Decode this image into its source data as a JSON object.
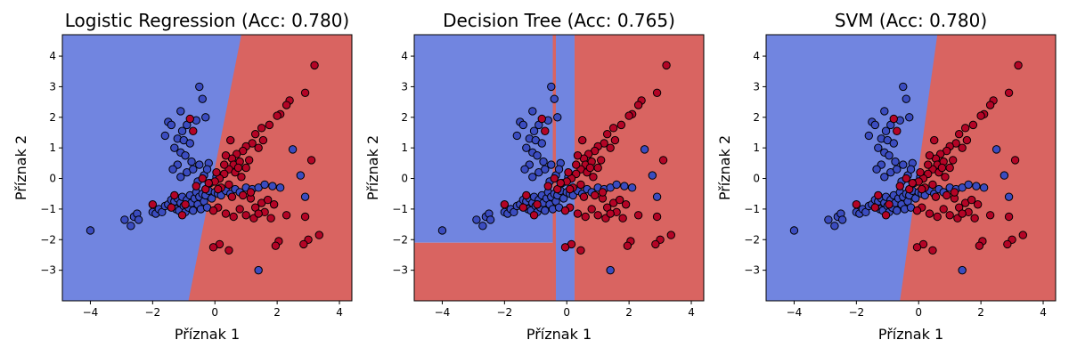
{
  "figure": {
    "class_colors": {
      "0": "#3b4cc0",
      "1": "#b40426"
    },
    "region_colors": {
      "0": "#7185e0",
      "1": "#d96461"
    }
  },
  "chart_data": [
    {
      "type": "scatter",
      "title": "Logistic Regression (Acc: 0.780)",
      "xlabel": "Příznak 1",
      "ylabel": "Příznak 2",
      "xlim": [
        -4.9,
        4.4
      ],
      "ylim": [
        -4.0,
        4.7
      ],
      "xticks": [
        -4,
        -2,
        0,
        2,
        4
      ],
      "yticks": [
        -3,
        -2,
        -1,
        0,
        1,
        2,
        3,
        4
      ],
      "grid": false,
      "decision_boundary": {
        "kind": "linear",
        "points": [
          [
            -0.85,
            -4.0
          ],
          [
            0.85,
            4.7
          ]
        ],
        "left_class": 0,
        "right_class": 1
      }
    },
    {
      "type": "scatter",
      "title": "Decision Tree (Acc: 0.765)",
      "xlabel": "Příznak 1",
      "ylabel": "Příznak 2",
      "xlim": [
        -4.9,
        4.4
      ],
      "ylim": [
        -4.0,
        4.7
      ],
      "xticks": [
        -4,
        -2,
        0,
        2,
        4
      ],
      "yticks": [
        -3,
        -2,
        -1,
        0,
        1,
        2,
        3,
        4
      ],
      "grid": false,
      "decision_regions": [
        {
          "x": [
            -4.9,
            -0.45
          ],
          "y": [
            -2.1,
            4.7
          ],
          "class": 0
        },
        {
          "x": [
            -4.9,
            -0.45
          ],
          "y": [
            -4.0,
            -2.1
          ],
          "class": 1
        },
        {
          "x": [
            -0.45,
            -0.35
          ],
          "y": [
            -4.0,
            4.7
          ],
          "class": 1
        },
        {
          "x": [
            -0.35,
            0.25
          ],
          "y": [
            -4.0,
            4.7
          ],
          "class": 0
        },
        {
          "x": [
            0.25,
            4.4
          ],
          "y": [
            -4.0,
            4.7
          ],
          "class": 1
        }
      ]
    },
    {
      "type": "scatter",
      "title": "SVM (Acc: 0.780)",
      "xlabel": "Příznak 1",
      "ylabel": "Příznak 2",
      "xlim": [
        -4.9,
        4.4
      ],
      "ylim": [
        -4.0,
        4.7
      ],
      "xticks": [
        -4,
        -2,
        0,
        2,
        4
      ],
      "yticks": [
        -3,
        -2,
        -1,
        0,
        1,
        2,
        3,
        4
      ],
      "grid": false,
      "decision_boundary": {
        "kind": "linear",
        "points": [
          [
            -0.6,
            -4.0
          ],
          [
            0.6,
            4.7
          ]
        ],
        "left_class": 0,
        "right_class": 1
      }
    }
  ],
  "points": [
    {
      "x": -4.0,
      "y": -1.7,
      "c": 0
    },
    {
      "x": -2.9,
      "y": -1.35,
      "c": 0
    },
    {
      "x": -2.7,
      "y": -1.55,
      "c": 0
    },
    {
      "x": -2.6,
      "y": -1.25,
      "c": 0
    },
    {
      "x": -2.5,
      "y": -1.15,
      "c": 0
    },
    {
      "x": -2.45,
      "y": -1.35,
      "c": 0
    },
    {
      "x": -2.0,
      "y": -1.1,
      "c": 0
    },
    {
      "x": -1.9,
      "y": -1.15,
      "c": 0
    },
    {
      "x": -1.8,
      "y": -1.0,
      "c": 0
    },
    {
      "x": -1.7,
      "y": -1.1,
      "c": 0
    },
    {
      "x": -1.6,
      "y": -0.9,
      "c": 0
    },
    {
      "x": -1.5,
      "y": -0.85,
      "c": 0
    },
    {
      "x": -1.4,
      "y": -0.7,
      "c": 0
    },
    {
      "x": -1.3,
      "y": -0.75,
      "c": 0
    },
    {
      "x": -1.25,
      "y": -1.0,
      "c": 0
    },
    {
      "x": -1.2,
      "y": -0.65,
      "c": 0
    },
    {
      "x": -1.15,
      "y": -1.05,
      "c": 0
    },
    {
      "x": -1.1,
      "y": -0.8,
      "c": 0
    },
    {
      "x": -1.05,
      "y": -0.6,
      "c": 0
    },
    {
      "x": -1.0,
      "y": -0.9,
      "c": 0
    },
    {
      "x": -0.95,
      "y": -1.1,
      "c": 0
    },
    {
      "x": -0.9,
      "y": -0.7,
      "c": 0
    },
    {
      "x": -0.85,
      "y": -0.95,
      "c": 0
    },
    {
      "x": -0.8,
      "y": -0.55,
      "c": 0
    },
    {
      "x": -0.75,
      "y": -0.8,
      "c": 0
    },
    {
      "x": -0.7,
      "y": -1.05,
      "c": 0
    },
    {
      "x": -0.65,
      "y": -0.65,
      "c": 0
    },
    {
      "x": -0.6,
      "y": -0.45,
      "c": 0
    },
    {
      "x": -0.55,
      "y": -0.85,
      "c": 0
    },
    {
      "x": -0.5,
      "y": -0.6,
      "c": 0
    },
    {
      "x": -0.45,
      "y": -1.0,
      "c": 0
    },
    {
      "x": -0.4,
      "y": -0.5,
      "c": 0
    },
    {
      "x": -0.35,
      "y": -0.75,
      "c": 0
    },
    {
      "x": -0.3,
      "y": -0.55,
      "c": 0
    },
    {
      "x": -0.25,
      "y": -0.95,
      "c": 0
    },
    {
      "x": -0.2,
      "y": -0.4,
      "c": 0
    },
    {
      "x": -0.1,
      "y": -0.65,
      "c": 0
    },
    {
      "x": 0.0,
      "y": -0.45,
      "c": 0
    },
    {
      "x": 0.1,
      "y": -0.5,
      "c": 0
    },
    {
      "x": 0.2,
      "y": -0.55,
      "c": 0
    },
    {
      "x": 0.35,
      "y": -0.4,
      "c": 0
    },
    {
      "x": 0.5,
      "y": -0.5,
      "c": 0
    },
    {
      "x": 0.65,
      "y": -0.35,
      "c": 0
    },
    {
      "x": 0.8,
      "y": -0.45,
      "c": 0
    },
    {
      "x": 1.0,
      "y": -0.3,
      "c": 0
    },
    {
      "x": 1.2,
      "y": -0.35,
      "c": 0
    },
    {
      "x": 1.4,
      "y": -0.3,
      "c": 0
    },
    {
      "x": 1.6,
      "y": -0.2,
      "c": 0
    },
    {
      "x": 1.85,
      "y": -0.25,
      "c": 0
    },
    {
      "x": 2.1,
      "y": -0.3,
      "c": 0
    },
    {
      "x": 2.75,
      "y": 0.1,
      "c": 0
    },
    {
      "x": 2.5,
      "y": 0.95,
      "c": 0
    },
    {
      "x": 2.9,
      "y": -0.6,
      "c": 0
    },
    {
      "x": 1.4,
      "y": -3.0,
      "c": 0
    },
    {
      "x": -1.5,
      "y": 1.85,
      "c": 0
    },
    {
      "x": -1.4,
      "y": 1.75,
      "c": 0
    },
    {
      "x": -1.1,
      "y": 2.2,
      "c": 0
    },
    {
      "x": -0.9,
      "y": 1.75,
      "c": 0
    },
    {
      "x": -1.05,
      "y": 1.55,
      "c": 0
    },
    {
      "x": -0.5,
      "y": 3.0,
      "c": 0
    },
    {
      "x": -0.4,
      "y": 2.6,
      "c": 0
    },
    {
      "x": -0.3,
      "y": 2.0,
      "c": 0
    },
    {
      "x": -0.6,
      "y": 1.9,
      "c": 0
    },
    {
      "x": -1.6,
      "y": 1.4,
      "c": 0
    },
    {
      "x": -1.2,
      "y": 1.3,
      "c": 0
    },
    {
      "x": -1.0,
      "y": 1.25,
      "c": 0
    },
    {
      "x": -0.8,
      "y": 1.15,
      "c": 0
    },
    {
      "x": -1.3,
      "y": 1.0,
      "c": 0
    },
    {
      "x": -1.1,
      "y": 0.85,
      "c": 0
    },
    {
      "x": -0.95,
      "y": 0.75,
      "c": 0
    },
    {
      "x": -1.2,
      "y": 0.45,
      "c": 0
    },
    {
      "x": -1.35,
      "y": 0.3,
      "c": 0
    },
    {
      "x": -0.75,
      "y": 0.55,
      "c": 0
    },
    {
      "x": -0.9,
      "y": 0.2,
      "c": 0
    },
    {
      "x": -1.1,
      "y": 0.05,
      "c": 0
    },
    {
      "x": -0.7,
      "y": 0.3,
      "c": 0
    },
    {
      "x": -0.5,
      "y": 0.45,
      "c": 0
    },
    {
      "x": -0.2,
      "y": 0.5,
      "c": 0
    },
    {
      "x": -0.35,
      "y": 0.1,
      "c": 0
    },
    {
      "x": -0.15,
      "y": -0.15,
      "c": 0
    },
    {
      "x": 0.05,
      "y": 0.05,
      "c": 0
    },
    {
      "x": -0.55,
      "y": -0.1,
      "c": 0
    },
    {
      "x": -0.25,
      "y": 0.3,
      "c": 0
    },
    {
      "x": 3.2,
      "y": 3.7,
      "c": 1
    },
    {
      "x": 2.9,
      "y": 2.8,
      "c": 1
    },
    {
      "x": 2.4,
      "y": 2.55,
      "c": 1
    },
    {
      "x": 2.3,
      "y": 2.4,
      "c": 1
    },
    {
      "x": 2.1,
      "y": 2.1,
      "c": 1
    },
    {
      "x": 2.0,
      "y": 2.05,
      "c": 1
    },
    {
      "x": 1.75,
      "y": 1.75,
      "c": 1
    },
    {
      "x": 1.5,
      "y": 1.65,
      "c": 1
    },
    {
      "x": 1.3,
      "y": 1.45,
      "c": 1
    },
    {
      "x": 1.55,
      "y": 1.25,
      "c": 1
    },
    {
      "x": 1.2,
      "y": 1.15,
      "c": 1
    },
    {
      "x": 1.0,
      "y": 1.05,
      "c": 1
    },
    {
      "x": 0.9,
      "y": 0.9,
      "c": 1
    },
    {
      "x": 1.4,
      "y": 1.0,
      "c": 1
    },
    {
      "x": 0.5,
      "y": 1.25,
      "c": 1
    },
    {
      "x": 0.7,
      "y": 0.8,
      "c": 1
    },
    {
      "x": 0.55,
      "y": 0.65,
      "c": 1
    },
    {
      "x": 0.6,
      "y": 0.45,
      "c": 1
    },
    {
      "x": 0.8,
      "y": 0.55,
      "c": 1
    },
    {
      "x": 0.45,
      "y": 0.3,
      "c": 1
    },
    {
      "x": 0.3,
      "y": 0.15,
      "c": 1
    },
    {
      "x": 0.65,
      "y": 0.2,
      "c": 1
    },
    {
      "x": 1.0,
      "y": 0.35,
      "c": 1
    },
    {
      "x": 0.85,
      "y": 0.05,
      "c": 1
    },
    {
      "x": 0.15,
      "y": 0.0,
      "c": 1
    },
    {
      "x": 0.0,
      "y": -0.1,
      "c": 1
    },
    {
      "x": 0.2,
      "y": -0.3,
      "c": 1
    },
    {
      "x": 0.45,
      "y": -0.2,
      "c": 1
    },
    {
      "x": 0.55,
      "y": -0.6,
      "c": 1
    },
    {
      "x": 0.9,
      "y": -0.55,
      "c": 1
    },
    {
      "x": 1.15,
      "y": -0.65,
      "c": 1
    },
    {
      "x": 1.3,
      "y": -0.95,
      "c": 1
    },
    {
      "x": 1.5,
      "y": -0.8,
      "c": 1
    },
    {
      "x": 1.7,
      "y": -0.7,
      "c": 1
    },
    {
      "x": 1.9,
      "y": -0.85,
      "c": 1
    },
    {
      "x": 1.6,
      "y": -1.1,
      "c": 1
    },
    {
      "x": 1.8,
      "y": -1.3,
      "c": 1
    },
    {
      "x": 2.3,
      "y": -1.2,
      "c": 1
    },
    {
      "x": 2.9,
      "y": -1.25,
      "c": 1
    },
    {
      "x": 1.25,
      "y": -1.3,
      "c": 1
    },
    {
      "x": 0.8,
      "y": -1.0,
      "c": 1
    },
    {
      "x": 0.6,
      "y": -1.25,
      "c": 1
    },
    {
      "x": 0.35,
      "y": -1.15,
      "c": 1
    },
    {
      "x": 0.1,
      "y": -0.95,
      "c": 1
    },
    {
      "x": -0.05,
      "y": -1.05,
      "c": 1
    },
    {
      "x": -0.3,
      "y": -0.35,
      "c": 1
    },
    {
      "x": -0.2,
      "y": -0.15,
      "c": 1
    },
    {
      "x": -0.6,
      "y": -0.25,
      "c": 1
    },
    {
      "x": -0.4,
      "y": 0.0,
      "c": 1
    },
    {
      "x": -0.95,
      "y": -0.85,
      "c": 1
    },
    {
      "x": -1.05,
      "y": -1.2,
      "c": 1
    },
    {
      "x": -1.4,
      "y": -0.95,
      "c": 1
    },
    {
      "x": -2.0,
      "y": -0.85,
      "c": 1
    },
    {
      "x": -1.3,
      "y": -0.55,
      "c": 1
    },
    {
      "x": 0.1,
      "y": -0.35,
      "c": 1
    },
    {
      "x": 0.3,
      "y": 0.45,
      "c": 1
    },
    {
      "x": 0.05,
      "y": 0.2,
      "c": 1
    },
    {
      "x": 0.75,
      "y": 0.35,
      "c": 1
    },
    {
      "x": 1.1,
      "y": 0.6,
      "c": 1
    },
    {
      "x": 0.35,
      "y": 0.75,
      "c": 1
    },
    {
      "x": -0.8,
      "y": 1.95,
      "c": 1
    },
    {
      "x": -0.7,
      "y": 1.55,
      "c": 1
    },
    {
      "x": 0.15,
      "y": -2.15,
      "c": 1
    },
    {
      "x": -0.05,
      "y": -2.25,
      "c": 1
    },
    {
      "x": 0.45,
      "y": -2.35,
      "c": 1
    },
    {
      "x": 2.05,
      "y": -2.05,
      "c": 1
    },
    {
      "x": 1.95,
      "y": -2.2,
      "c": 1
    },
    {
      "x": 3.0,
      "y": -2.0,
      "c": 1
    },
    {
      "x": 3.35,
      "y": -1.85,
      "c": 1
    },
    {
      "x": 2.85,
      "y": -2.15,
      "c": 1
    },
    {
      "x": 3.1,
      "y": 0.6,
      "c": 1
    },
    {
      "x": 1.0,
      "y": -1.2,
      "c": 1
    },
    {
      "x": 1.4,
      "y": -1.15,
      "c": 1
    },
    {
      "x": 1.15,
      "y": -0.45,
      "c": 1
    }
  ]
}
